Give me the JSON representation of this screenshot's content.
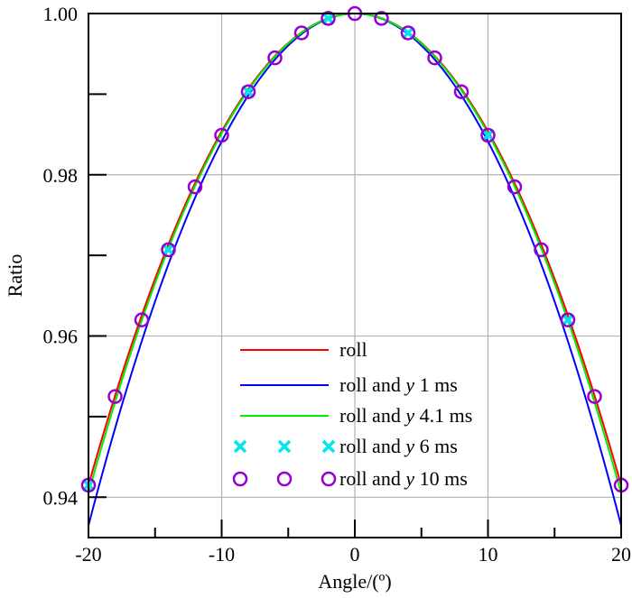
{
  "chart_data": {
    "type": "line",
    "title": "",
    "xlabel": "Angle/(º)",
    "ylabel": "Ratio",
    "xlim": [
      -20,
      20
    ],
    "ylim": [
      0.935,
      1.0
    ],
    "x_ticks": [
      -20,
      -10,
      0,
      10,
      20
    ],
    "x_tick_labels": [
      "-20",
      "-10",
      "0",
      "10",
      "20"
    ],
    "y_ticks": [
      0.94,
      0.96,
      0.98,
      1.0
    ],
    "y_tick_labels": [
      "0.94",
      "0.96",
      "0.98",
      "1.00"
    ],
    "grid": true,
    "legend_position": "bottom-center",
    "series": [
      {
        "name": "roll",
        "style": "line",
        "color": "#ff0000",
        "x": [
          -20,
          -18,
          -16,
          -14,
          -12,
          -10,
          -8,
          -6,
          -4,
          -2,
          0,
          2,
          4,
          6,
          8,
          10,
          12,
          14,
          16,
          18,
          20
        ],
        "y": [
          0.9415,
          0.9525,
          0.962,
          0.9707,
          0.9785,
          0.9849,
          0.9903,
          0.9945,
          0.9976,
          0.9994,
          1.0,
          0.9994,
          0.9976,
          0.9945,
          0.9903,
          0.9849,
          0.9785,
          0.9707,
          0.962,
          0.9525,
          0.9415
        ]
      },
      {
        "name": "roll and y 1 ms",
        "name_parts": [
          "roll and ",
          "y",
          " 1 ms"
        ],
        "style": "line",
        "color": "#0000ff",
        "x": [
          -20,
          -18,
          -16,
          -14,
          -12,
          -10,
          -8,
          -6,
          -4,
          -2,
          0,
          2,
          4,
          6,
          8,
          10,
          12,
          14,
          16,
          18,
          20
        ],
        "y": [
          0.9365,
          0.9485,
          0.959,
          0.968,
          0.9763,
          0.9835,
          0.9895,
          0.9938,
          0.9972,
          0.9993,
          1.0,
          0.9993,
          0.9972,
          0.9938,
          0.9895,
          0.9835,
          0.9763,
          0.968,
          0.959,
          0.9485,
          0.9365
        ]
      },
      {
        "name": "roll and y 4.1 ms",
        "name_parts": [
          "roll and ",
          "y",
          " 4.1 ms"
        ],
        "style": "line",
        "color": "#00ee00",
        "x": [
          -20,
          -18,
          -16,
          -14,
          -12,
          -10,
          -8,
          -6,
          -4,
          -2,
          0,
          2,
          4,
          6,
          8,
          10,
          12,
          14,
          16,
          18,
          20
        ],
        "y": [
          0.9405,
          0.9515,
          0.9612,
          0.97,
          0.978,
          0.9846,
          0.9901,
          0.9944,
          0.9975,
          0.9994,
          1.0,
          0.9994,
          0.9975,
          0.9944,
          0.9901,
          0.9846,
          0.978,
          0.97,
          0.9612,
          0.9515,
          0.9405
        ]
      },
      {
        "name": "roll and y 6 ms",
        "name_parts": [
          "roll and ",
          "y",
          " 6 ms"
        ],
        "style": "x-marker",
        "color": "#00e5ee",
        "x": [
          -20,
          -14,
          -8,
          -2,
          4,
          10,
          16
        ],
        "y": [
          0.9415,
          0.9707,
          0.9903,
          0.9994,
          0.9976,
          0.9849,
          0.962
        ]
      },
      {
        "name": "roll and y 10 ms",
        "name_parts": [
          "roll and ",
          "y",
          " 10 ms"
        ],
        "style": "circle-marker",
        "color": "#9400d3",
        "x": [
          -20,
          -18,
          -16,
          -14,
          -12,
          -10,
          -8,
          -6,
          -4,
          -2,
          0,
          2,
          4,
          6,
          8,
          10,
          12,
          14,
          16,
          18,
          20
        ],
        "y": [
          0.9415,
          0.9525,
          0.962,
          0.9707,
          0.9785,
          0.9849,
          0.9903,
          0.9945,
          0.9976,
          0.9994,
          1.0,
          0.9994,
          0.9976,
          0.9945,
          0.9903,
          0.9849,
          0.9785,
          0.9707,
          0.962,
          0.9525,
          0.9415
        ]
      }
    ]
  }
}
